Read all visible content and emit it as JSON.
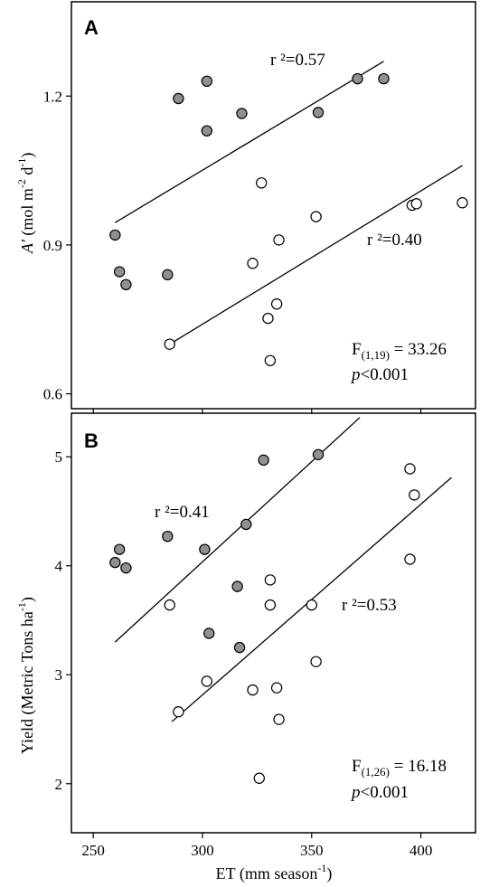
{
  "chart_data": [
    {
      "panel": "A",
      "type": "scatter",
      "xlabel": "ET (mm season-1)",
      "ylabel": "A' (mol m-2 d-1)",
      "xlim": [
        240,
        425
      ],
      "ylim": [
        0.57,
        1.39
      ],
      "yticks": [
        "0.6",
        "0.9",
        "1.2"
      ],
      "series": [
        {
          "fill": "#909090",
          "x": [
            260,
            262,
            265,
            284,
            289,
            302,
            302,
            318,
            353,
            371,
            383
          ],
          "y": [
            0.92,
            0.846,
            0.82,
            0.84,
            1.195,
            1.23,
            1.13,
            1.165,
            1.167,
            1.235,
            1.235
          ],
          "fit": {
            "x": [
              260,
              383
            ],
            "y": [
              0.945,
              1.27
            ]
          },
          "annotation": "r ²=0.57"
        },
        {
          "fill": "#ffffff",
          "x": [
            285,
            323,
            327,
            330,
            331,
            334,
            335,
            352,
            396,
            398,
            419
          ],
          "y": [
            0.7,
            0.863,
            1.025,
            0.752,
            0.667,
            0.781,
            0.91,
            0.957,
            0.98,
            0.983,
            0.985
          ],
          "fit": {
            "x": [
              285,
              419
            ],
            "y": [
              0.7,
              1.06
            ]
          },
          "annotation": "r ²=0.40"
        }
      ],
      "stat_line1": "F(1,19) = 33.26",
      "stat_line2": "p<0.001",
      "stat_sub": "(1,19)",
      "stat_val": " = 33.26"
    },
    {
      "panel": "B",
      "type": "scatter",
      "xlabel": "ET (mm season-1)",
      "ylabel": "Yield (Metric Tons ha-1)",
      "xlim": [
        240,
        425
      ],
      "xticks": [
        "250",
        "300",
        "350",
        "400"
      ],
      "ylim": [
        1.55,
        5.4
      ],
      "yticks": [
        "2",
        "3",
        "4",
        "5"
      ],
      "series": [
        {
          "fill": "#909090",
          "x": [
            260,
            262,
            265,
            284,
            301,
            303,
            316,
            317,
            320,
            328,
            353
          ],
          "y": [
            4.03,
            4.15,
            3.98,
            4.27,
            4.15,
            3.38,
            3.81,
            3.25,
            4.38,
            4.97,
            5.02
          ],
          "fit": {
            "x": [
              260,
              372
            ],
            "y": [
              3.3,
              5.36
            ]
          },
          "annotation": "r ²=0.41"
        },
        {
          "fill": "#ffffff",
          "x": [
            285,
            289,
            302,
            323,
            326,
            331,
            331,
            334,
            335,
            350,
            352,
            395,
            395,
            397
          ],
          "y": [
            3.64,
            2.66,
            2.94,
            2.86,
            2.05,
            3.87,
            3.64,
            2.88,
            2.59,
            3.64,
            3.12,
            4.89,
            4.06,
            4.65
          ],
          "fit": {
            "x": [
              286,
              414
            ],
            "y": [
              2.57,
              4.81
            ]
          },
          "annotation": "r ²=0.53"
        }
      ],
      "stat_line1": "F(1,26) = 16.18",
      "stat_line2": "p<0.001",
      "stat_sub": "(1,26)",
      "stat_val": " = 16.18"
    }
  ],
  "labels": {
    "panelA": "A",
    "panelB": "B",
    "x_axis": "ET (mm season",
    "x_axis_sup": "-1",
    "x_axis_close": ")",
    "a_axis_var": "A'",
    "a_axis_unit1": " (mol m",
    "a_axis_sup1": "-2",
    "a_axis_unit2": " d",
    "a_axis_sup2": "-1",
    "a_axis_close": ")",
    "yield_axis": "Yield (Metric Tons ha",
    "yield_axis_sup": "-1",
    "yield_axis_close": ")",
    "f_letter": "F",
    "p_letter": "p",
    "p_rest": "<0.001"
  }
}
